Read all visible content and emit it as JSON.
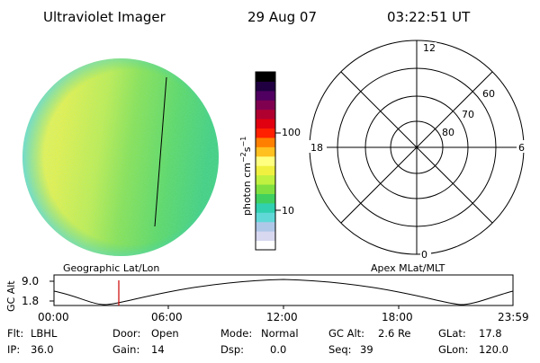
{
  "header": {
    "instrument": "Ultraviolet Imager",
    "date": "29 Aug 07",
    "time": "03:22:51 UT"
  },
  "colorbar": {
    "unit_label": "photon cm",
    "unit_exp1": "−2",
    "unit_s": "s",
    "unit_exp2": "−1",
    "ticks": [
      "100",
      "10"
    ],
    "colors": [
      "#ffffff",
      "#d8d8f0",
      "#b0c8e8",
      "#60d8d8",
      "#30d0b0",
      "#40d060",
      "#80e040",
      "#c0f040",
      "#f0f040",
      "#ffff80",
      "#ffc020",
      "#ff8000",
      "#ff2000",
      "#e00010",
      "#b00030",
      "#800050",
      "#500060",
      "#200040",
      "#000000"
    ]
  },
  "polar": {
    "mlt_labels": {
      "top": "12",
      "left": "18",
      "right": "6",
      "bottom": "0"
    },
    "lat_labels": [
      "60",
      "70",
      "80"
    ]
  },
  "panel_labels": {
    "left": "Geographic Lat/Lon",
    "right": "Apex MLat/MLT"
  },
  "altitude_plot": {
    "ylabel": "GC Alt",
    "yticks": [
      "9.0",
      "1.8"
    ],
    "xticks": [
      "00:00",
      "06:00",
      "12:00",
      "18:00",
      "23:59"
    ],
    "marker_color": "#cc0000"
  },
  "info": {
    "flt_label": "Flt:",
    "flt_value": "LBHL",
    "ip_label": "IP:",
    "ip_value": "36.0",
    "door_label": "Door:",
    "door_value": "Open",
    "gain_label": "Gain:",
    "gain_value": "14",
    "mode_label": "Mode:",
    "mode_value": "Normal",
    "dsp_label": "Dsp:",
    "dsp_value": "0.0",
    "gcalt_label": "GC Alt:",
    "gcalt_value": "2.6 Re",
    "seq_label": "Seq:",
    "seq_value": "39",
    "glat_label": "GLat:",
    "glat_value": "17.8",
    "glon_label": "GLon:",
    "glon_value": "120.0"
  }
}
